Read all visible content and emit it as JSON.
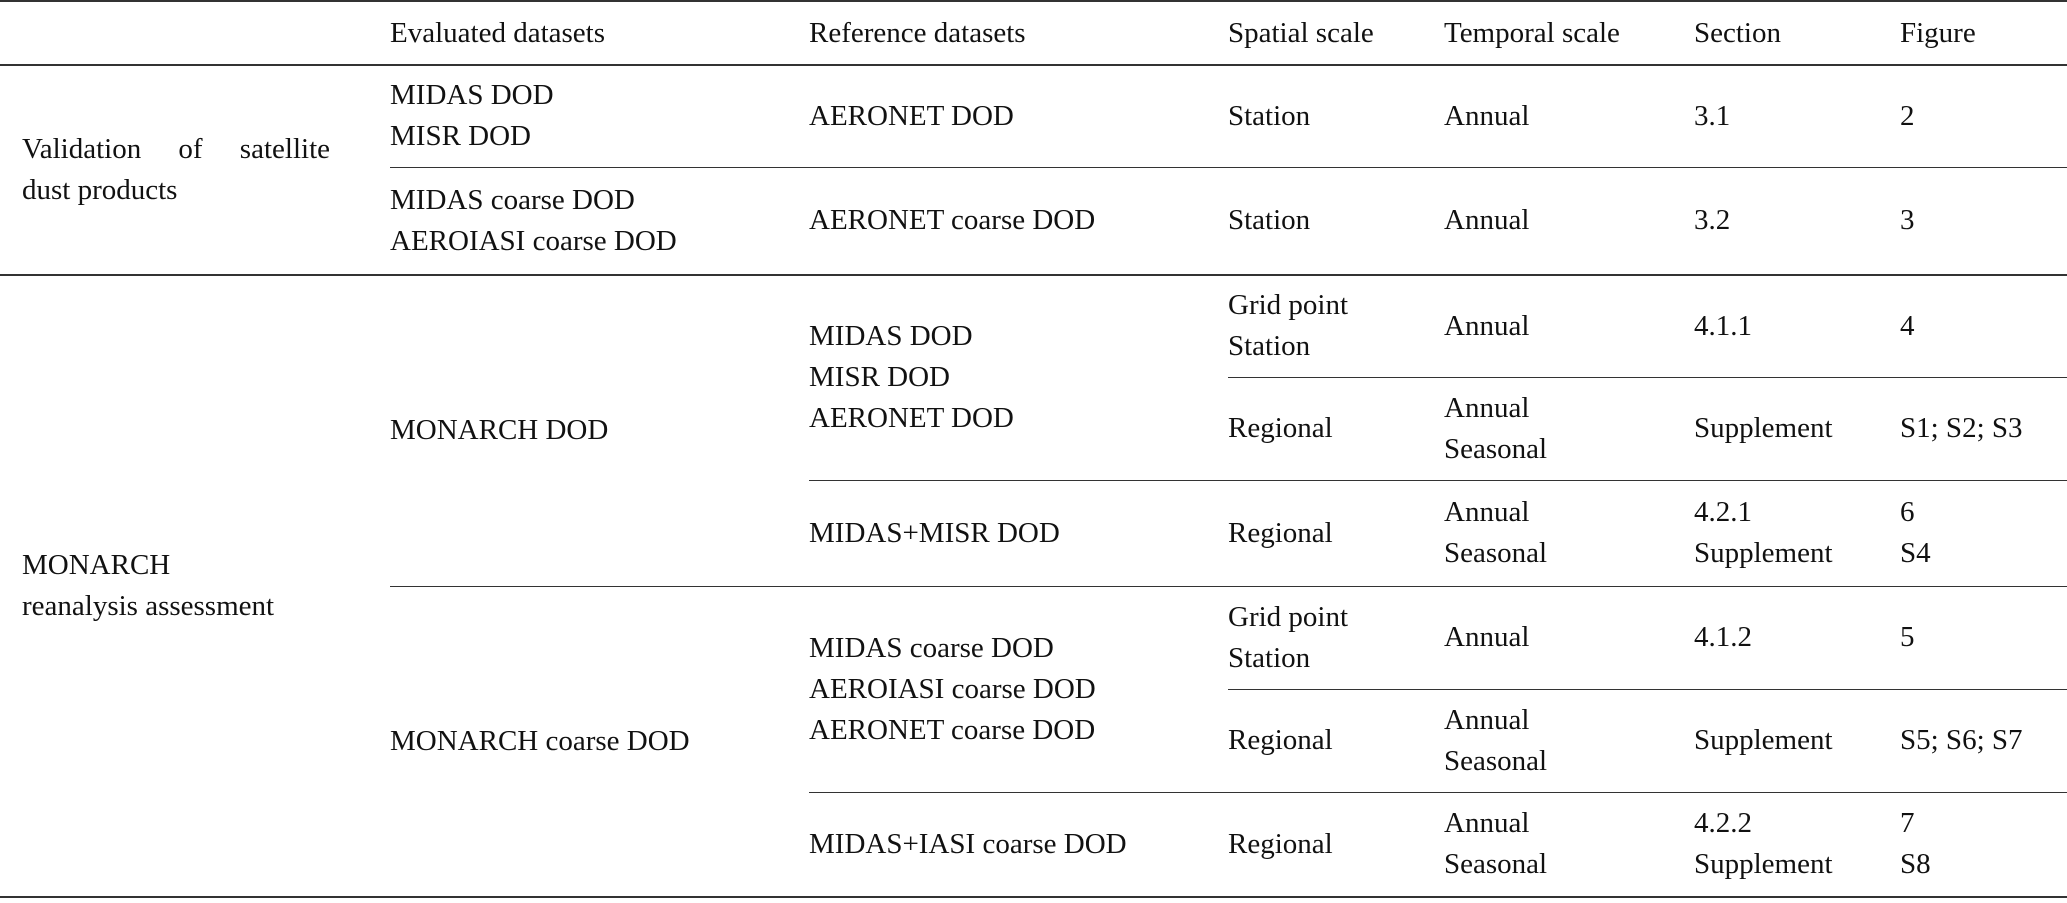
{
  "header": {
    "col0": "",
    "col1": "Evaluated datasets",
    "col2": "Reference datasets",
    "col3": "Spatial scale",
    "col4": "Temporal scale",
    "col5": "Section",
    "col6": "Figure"
  },
  "groups": {
    "validation": {
      "label_line1": "Validation of satellite",
      "label_line2": "dust products"
    },
    "monarch": {
      "label_line1": "MONARCH",
      "label_line2": "reanalysis assessment"
    }
  },
  "rows": {
    "r1": {
      "evaluated_1": "MIDAS DOD",
      "evaluated_2": "MISR DOD",
      "reference": "AERONET DOD",
      "spatial": "Station",
      "temporal": "Annual",
      "section": "3.1",
      "figure": "2"
    },
    "r2": {
      "evaluated_1": "MIDAS coarse DOD",
      "evaluated_2": "AEROIASI coarse DOD",
      "reference": "AERONET coarse DOD",
      "spatial": "Station",
      "temporal": "Annual",
      "section": "3.2",
      "figure": "3"
    },
    "r3": {
      "evaluated": "MONARCH DOD",
      "reference_1": "MIDAS DOD",
      "reference_2": "MISR DOD",
      "reference_3": "AERONET DOD",
      "spatial_1": "Grid point",
      "spatial_2": "Station",
      "temporal": "Annual",
      "section": "4.1.1",
      "figure": "4"
    },
    "r4": {
      "spatial": "Regional",
      "temporal_1": "Annual",
      "temporal_2": "Seasonal",
      "section": "Supplement",
      "figure": "S1; S2; S3"
    },
    "r5": {
      "reference": "MIDAS+MISR DOD",
      "spatial": "Regional",
      "temporal_1": "Annual",
      "temporal_2": "Seasonal",
      "section_1": "4.2.1",
      "section_2": "Supplement",
      "figure_1": "6",
      "figure_2": "S4"
    },
    "r6": {
      "evaluated": "MONARCH coarse DOD",
      "reference_1": "MIDAS coarse DOD",
      "reference_2": "AEROIASI coarse DOD",
      "reference_3": "AERONET coarse DOD",
      "spatial_1": "Grid point",
      "spatial_2": "Station",
      "temporal": "Annual",
      "section": "4.1.2",
      "figure": "5"
    },
    "r7": {
      "spatial": "Regional",
      "temporal_1": "Annual",
      "temporal_2": "Seasonal",
      "section": "Supplement",
      "figure": "S5; S6; S7"
    },
    "r8": {
      "reference": "MIDAS+IASI coarse DOD",
      "spatial": "Regional",
      "temporal_1": "Annual",
      "temporal_2": "Seasonal",
      "section_1": "4.2.2",
      "section_2": "Supplement",
      "figure_1": "7",
      "figure_2": "S8"
    }
  }
}
